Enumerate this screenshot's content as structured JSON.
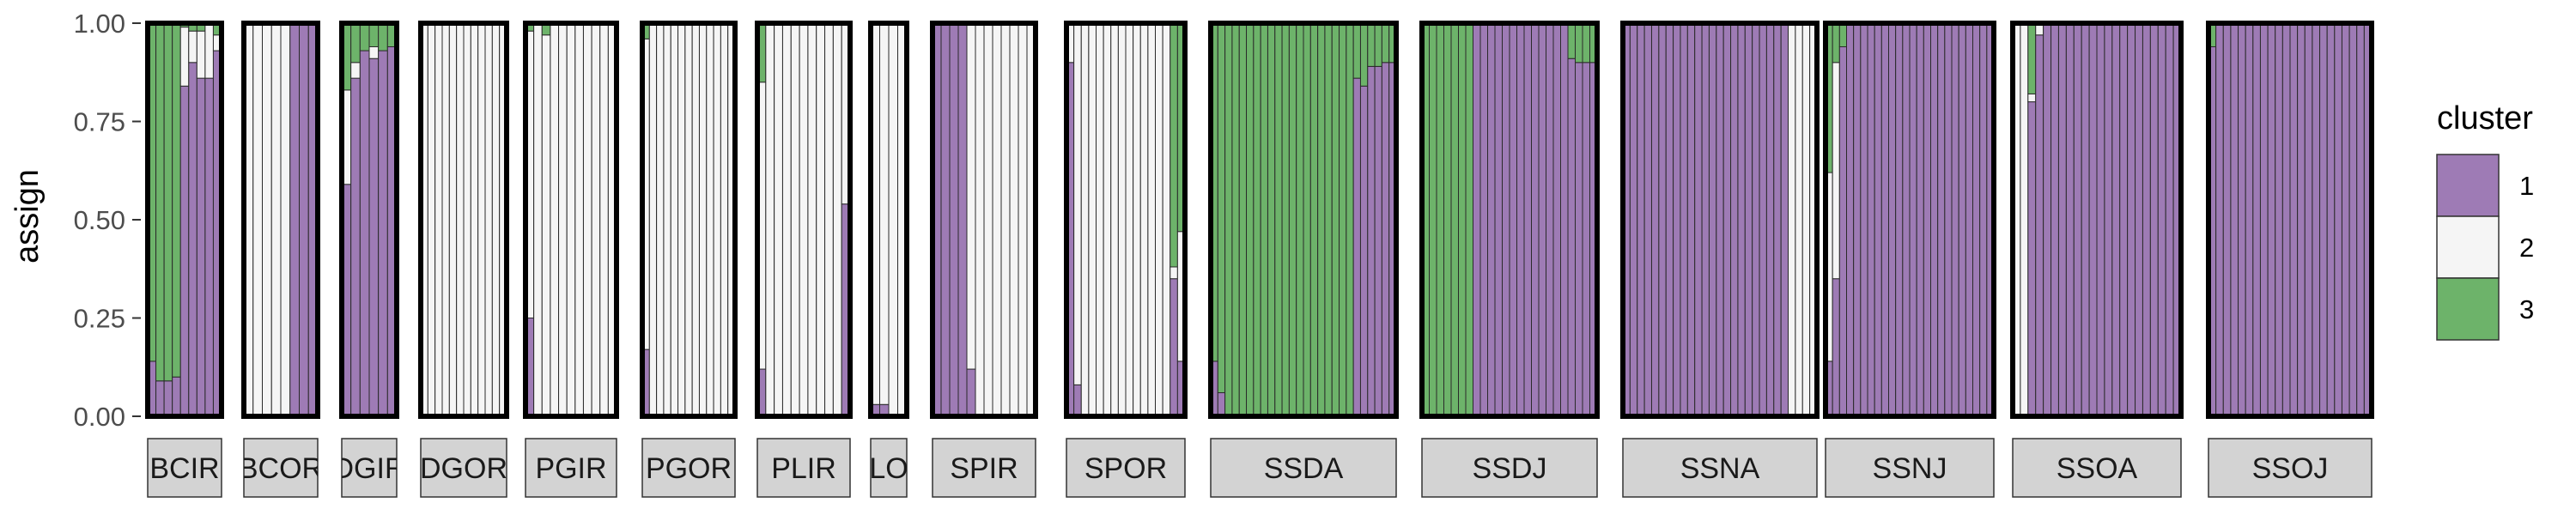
{
  "chart_data": {
    "type": "bar",
    "stacked": true,
    "ylabel": "assign",
    "ylim": [
      0,
      1
    ],
    "yticks": [
      "0.00",
      "0.25",
      "0.50",
      "0.75",
      "1.00"
    ],
    "legend": {
      "title": "cluster",
      "position": "right",
      "entries": [
        {
          "label": "1",
          "color": "#9E7BB5"
        },
        {
          "label": "2",
          "color": "#F5F5F5"
        },
        {
          "label": "3",
          "color": "#6DB36A"
        }
      ]
    },
    "strip_fill": "#D3D3D3",
    "panels": [
      {
        "label": "BCIR",
        "n": 9,
        "k1": [
          0.14,
          0.09,
          0.09,
          0.1,
          0.84,
          0.9,
          0.86,
          0.86,
          0.93
        ],
        "k3": [
          0.86,
          0.91,
          0.91,
          0.9,
          0.01,
          0.02,
          0.02,
          0.0,
          0.03
        ]
      },
      {
        "label": "BCOR",
        "n": 8,
        "k1": [
          0.0,
          0.0,
          0.0,
          0.0,
          0.0,
          1.0,
          1.0,
          1.0
        ],
        "k3": [
          0,
          0,
          0,
          0,
          0,
          0,
          0,
          0
        ]
      },
      {
        "label": "DGIR",
        "n": 6,
        "k1": [
          0.59,
          0.86,
          0.93,
          0.91,
          0.93,
          0.94
        ],
        "k3": [
          0.17,
          0.1,
          0.07,
          0.06,
          0.07,
          0.06
        ]
      },
      {
        "label": "DGOR",
        "n": 12,
        "k1": [
          0,
          0,
          0,
          0,
          0,
          0,
          0,
          0,
          0,
          0,
          0,
          0
        ],
        "k3": [
          0,
          0,
          0,
          0,
          0,
          0,
          0,
          0,
          0,
          0,
          0,
          0
        ]
      },
      {
        "label": "PGIR",
        "n": 11,
        "k1": [
          0.25,
          0.0,
          0.0,
          0.0,
          0.0,
          0.0,
          0.0,
          0.0,
          0.0,
          0.0,
          0.0
        ],
        "k3": [
          0.02,
          0.0,
          0.03,
          0.0,
          0.0,
          0.0,
          0.0,
          0.0,
          0.0,
          0.0,
          0.0
        ]
      },
      {
        "label": "PGOR",
        "n": 13,
        "k1": [
          0.17,
          0,
          0,
          0,
          0,
          0,
          0,
          0,
          0,
          0,
          0,
          0,
          0
        ],
        "k3": [
          0.04,
          0,
          0,
          0,
          0,
          0,
          0,
          0,
          0,
          0,
          0,
          0,
          0
        ]
      },
      {
        "label": "PLIR",
        "n": 11,
        "k1": [
          0.12,
          0,
          0,
          0,
          0,
          0,
          0,
          0,
          0,
          0,
          0.54
        ],
        "k3": [
          0.15,
          0,
          0,
          0,
          0,
          0,
          0,
          0,
          0,
          0,
          0
        ]
      },
      {
        "label": "LO",
        "n": 4,
        "k1": [
          0.03,
          0.03,
          0.0,
          0.0
        ],
        "k3": [
          0,
          0,
          0,
          0
        ]
      },
      {
        "label": "SPIR",
        "n": 12,
        "k1": [
          1.0,
          1.0,
          1.0,
          1.0,
          0.12,
          0,
          0,
          0,
          0,
          0,
          0,
          0
        ],
        "k3": [
          0,
          0,
          0,
          0,
          0,
          0,
          0,
          0,
          0,
          0,
          0,
          0
        ]
      },
      {
        "label": "SPOR",
        "n": 16,
        "k1": [
          0.9,
          0.08,
          0,
          0,
          0,
          0,
          0,
          0,
          0,
          0,
          0,
          0,
          0,
          0,
          0.35,
          0.14
        ],
        "k3": [
          0,
          0,
          0,
          0,
          0,
          0,
          0,
          0,
          0,
          0,
          0,
          0,
          0,
          0,
          0.62,
          0.53
        ]
      },
      {
        "label": "SSDA",
        "n": 26,
        "k1": [
          0.14,
          0.06,
          0,
          0,
          0,
          0,
          0,
          0,
          0,
          0,
          0,
          0,
          0,
          0,
          0,
          0,
          0,
          0,
          0,
          0,
          0.86,
          0.84,
          0.89,
          0.89,
          0.9,
          0.9
        ],
        "k3": [
          0.86,
          0.94,
          1,
          1,
          1,
          1,
          1,
          1,
          1,
          1,
          1,
          1,
          1,
          1,
          1,
          1,
          1,
          1,
          1,
          1,
          0.14,
          0.16,
          0.11,
          0.11,
          0.1,
          0.1
        ]
      },
      {
        "label": "SSDJ",
        "n": 24,
        "k1": [
          0,
          0,
          0,
          0,
          0,
          0,
          0,
          1,
          1,
          1,
          1,
          1,
          1,
          1,
          1,
          1,
          1,
          1,
          1,
          1,
          0.91,
          0.9,
          0.9,
          0.9
        ],
        "k3": [
          1,
          1,
          1,
          1,
          1,
          1,
          1,
          0,
          0,
          0,
          0,
          0,
          0,
          0,
          0,
          0,
          0,
          0,
          0,
          0,
          0.09,
          0.1,
          0.1,
          0.1
        ]
      },
      {
        "label": "SSNA",
        "n": 27,
        "k1": [
          1,
          1,
          1,
          1,
          1,
          1,
          1,
          1,
          1,
          1,
          1,
          1,
          1,
          1,
          1,
          1,
          1,
          1,
          1,
          1,
          1,
          1,
          1,
          0,
          0,
          0,
          0
        ],
        "k3": [
          0,
          0,
          0,
          0,
          0,
          0,
          0,
          0,
          0,
          0,
          0,
          0,
          0,
          0,
          0,
          0,
          0,
          0,
          0,
          0,
          0,
          0,
          0,
          0,
          0,
          0,
          0
        ]
      },
      {
        "label": "SSNJ",
        "n": 24,
        "k1": [
          0.14,
          0.35,
          0.94,
          1,
          1,
          1,
          1,
          1,
          1,
          1,
          1,
          1,
          1,
          1,
          1,
          1,
          1,
          1,
          1,
          1,
          1,
          1,
          1,
          1
        ],
        "k3": [
          0.38,
          0.1,
          0.06,
          0,
          0,
          0,
          0,
          0,
          0,
          0,
          0,
          0,
          0,
          0,
          0,
          0,
          0,
          0,
          0,
          0,
          0,
          0,
          0,
          0
        ]
      },
      {
        "label": "SSOA",
        "n": 22,
        "k1": [
          0,
          0,
          0.8,
          0.97,
          1,
          1,
          1,
          1,
          1,
          1,
          1,
          1,
          1,
          1,
          1,
          1,
          1,
          1,
          1,
          1,
          1,
          1
        ],
        "k3": [
          0,
          0,
          0.18,
          0,
          0,
          0,
          0,
          0,
          0,
          0,
          0,
          0,
          0,
          0,
          0,
          0,
          0,
          0,
          0,
          0,
          0,
          0
        ]
      },
      {
        "label": "SSOJ",
        "n": 22,
        "k1": [
          0.94,
          1,
          1,
          1,
          1,
          1,
          1,
          1,
          1,
          1,
          1,
          1,
          1,
          1,
          1,
          1,
          1,
          1,
          1,
          1,
          1,
          1
        ],
        "k3": [
          0.06,
          0,
          0,
          0,
          0,
          0,
          0,
          0,
          0,
          0,
          0,
          0,
          0,
          0,
          0,
          0,
          0,
          0,
          0,
          0,
          0,
          0
        ]
      }
    ]
  }
}
